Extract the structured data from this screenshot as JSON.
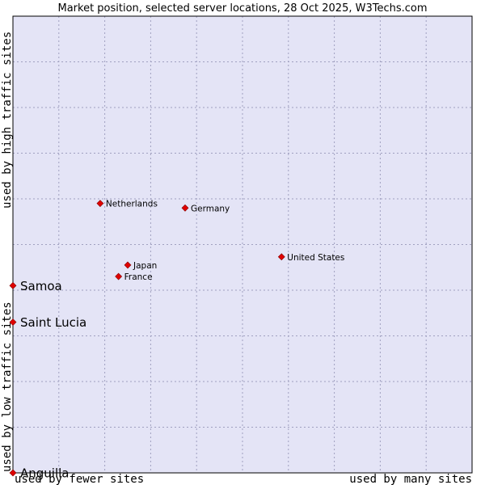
{
  "chart_data": {
    "type": "scatter",
    "title": "Market position, selected server locations, 28 Oct 2025, W3Techs.com",
    "xlabel_left": "used by fewer sites",
    "xlabel_right": "used by many sites",
    "ylabel_bottom": "used by low traffic sites",
    "ylabel_top": "used by high traffic sites",
    "xlim": [
      0,
      100
    ],
    "ylim": [
      0,
      100
    ],
    "grid": true,
    "points": [
      {
        "name": "Netherlands",
        "x": 19.0,
        "y": 59.0,
        "highlight": false
      },
      {
        "name": "Germany",
        "x": 37.5,
        "y": 58.0,
        "highlight": false
      },
      {
        "name": "United States",
        "x": 58.5,
        "y": 47.3,
        "highlight": false
      },
      {
        "name": "Japan",
        "x": 25.0,
        "y": 45.5,
        "highlight": false
      },
      {
        "name": "France",
        "x": 23.0,
        "y": 43.0,
        "highlight": false
      },
      {
        "name": "Samoa",
        "x": 0,
        "y": 41.0,
        "highlight": true
      },
      {
        "name": "Saint Lucia",
        "x": 0,
        "y": 33.0,
        "highlight": true
      },
      {
        "name": "Anguilla",
        "x": 0,
        "y": 0,
        "highlight": true
      }
    ]
  },
  "colors": {
    "plot_background": "#e4e4f6",
    "point": "#e00000",
    "point_stroke": "#800000",
    "border": "#000000"
  }
}
